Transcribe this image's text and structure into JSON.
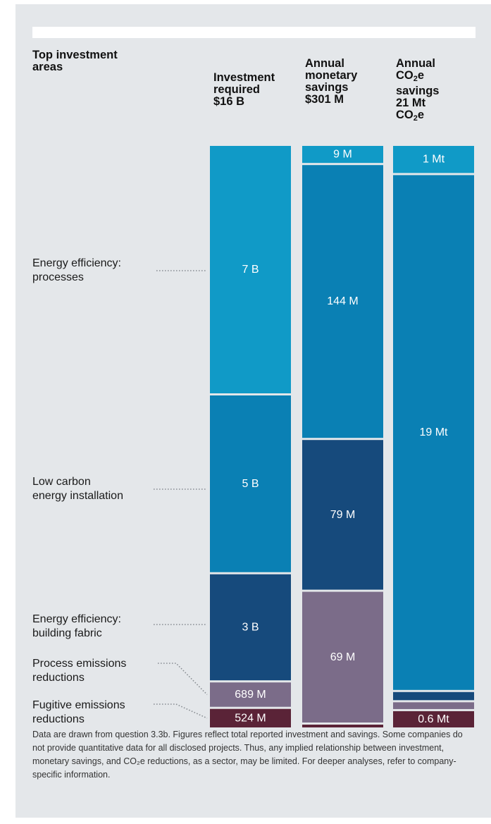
{
  "header": {
    "title_line1": "Top investment",
    "title_line2": "areas"
  },
  "columns": [
    {
      "line1": "Investment",
      "line2": "required",
      "total": "$16 B"
    },
    {
      "line1": "Annual",
      "line2": "monetary",
      "line3": "savings",
      "total": "$301 M"
    },
    {
      "line1": "Annual",
      "line2_main": "CO",
      "line2_sub": "2",
      "line2_end": "e",
      "line3": "savings",
      "total": "21 Mt",
      "total2_main": "CO",
      "total2_sub": "2",
      "total2_end": "e"
    }
  ],
  "categories": [
    {
      "line1": "Energy efficiency:",
      "line2": "processes"
    },
    {
      "line1": "Low carbon",
      "line2": "energy installation"
    },
    {
      "line1": "Energy efficiency:",
      "line2": "building fabric"
    },
    {
      "line1": "Process emissions",
      "line2": "reductions"
    },
    {
      "line1": "Fugitive emissions",
      "line2": "reductions"
    }
  ],
  "chart_data": {
    "type": "bar",
    "stacked": true,
    "normalized": true,
    "categories": [
      "Investment required",
      "Annual monetary savings",
      "Annual CO2e savings"
    ],
    "series": [
      {
        "name": "Energy efficiency: processes",
        "color": "#109ac7",
        "values": [
          7000000000,
          9000000,
          1
        ],
        "labels": [
          "7 B",
          "9 M",
          "1 Mt"
        ]
      },
      {
        "name": "Low carbon energy installation",
        "color": "#0a80b4",
        "values": [
          5000000000,
          144000000,
          19
        ],
        "labels": [
          "5 B",
          "144 M",
          "19 Mt"
        ]
      },
      {
        "name": "Energy efficiency: building fabric",
        "color": "#164a7c",
        "values": [
          3000000000,
          79000000,
          0.3
        ],
        "labels": [
          "3 B",
          "79 M",
          ""
        ]
      },
      {
        "name": "Process emissions reductions",
        "color": "#7b6c89",
        "values": [
          689000000,
          69000000,
          0.25
        ],
        "labels": [
          "689 M",
          "69 M",
          ""
        ]
      },
      {
        "name": "Fugitive emissions reductions",
        "color": "#5a2337",
        "values": [
          524000000,
          1000000,
          0.6
        ],
        "labels": [
          "524 M",
          "",
          "0.6 Mt"
        ]
      }
    ],
    "column_totals": [
      "$16 B",
      "$301 M",
      "21 Mt"
    ]
  },
  "footnote": "Data are drawn from question 3.3b. Figures reflect total reported investment and savings. Some companies do not provide quantitative data for all disclosed projects. Thus, any implied relationship between investment, monetary savings, and CO₂e reductions, as a sector, may be limited. For deeper analyses, refer to company-specific information."
}
